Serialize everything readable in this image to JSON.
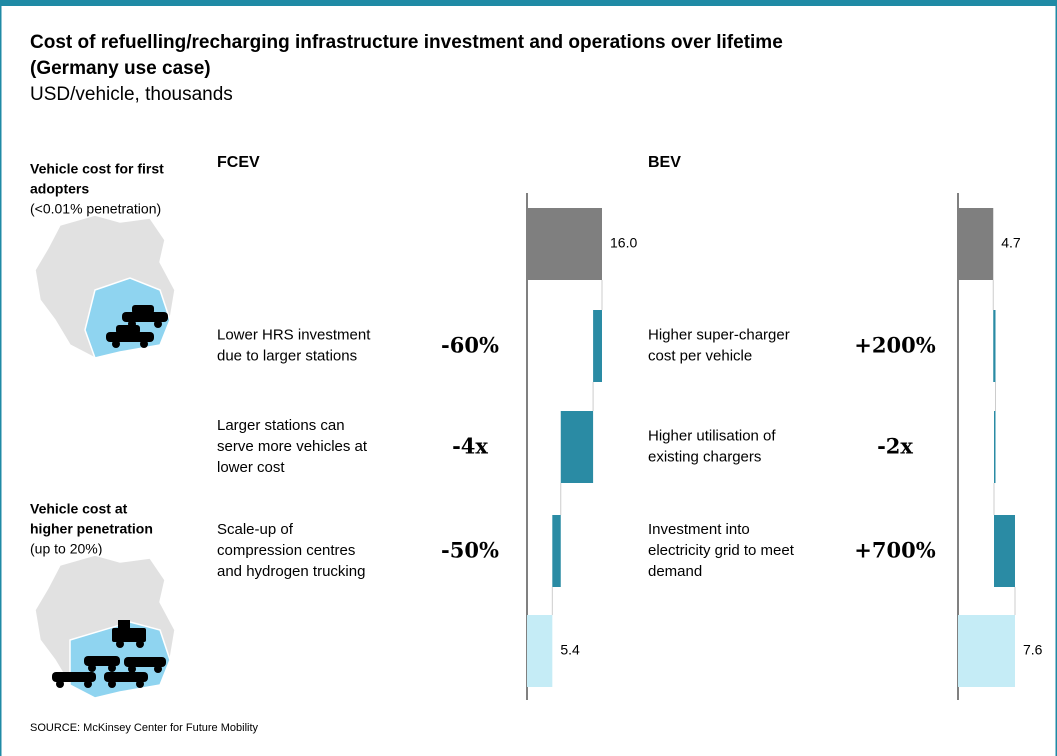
{
  "title": [
    "Cost of refuelling/recharging infrastructure investment and operations over lifetime",
    "(Germany use case)"
  ],
  "subtitle": "USD/vehicle, thousands",
  "side_panels": [
    {
      "heading": [
        "Vehicle cost for first",
        "adopters"
      ],
      "note": "(<0.01% penetration)"
    },
    {
      "heading": [
        "Vehicle cost at",
        "higher penetration"
      ],
      "note": "(up to 20%)"
    }
  ],
  "source": "SOURCE: McKinsey Center for Future Mobility",
  "chart_data": [
    {
      "type": "waterfall",
      "title": "FCEV",
      "categories": [
        null,
        [
          "Lower HRS investment",
          "due to larger stations"
        ],
        [
          "Larger stations can",
          "serve more vehicles at",
          "lower cost"
        ],
        [
          "Scale-up of",
          "compression centres",
          "and hydrogen trucking"
        ],
        null
      ],
      "measure": [
        "absolute",
        "relative",
        "relative",
        "relative",
        "total"
      ],
      "values": [
        16.0,
        -1.9,
        -6.9,
        -1.8,
        5.4
      ],
      "value_labels": [
        "16.0",
        null,
        null,
        null,
        "5.4"
      ],
      "annotations": [
        null,
        "-60%",
        "-4x",
        "-50%",
        null
      ],
      "colors": [
        "#7f7f7f",
        "#2a8ba4",
        "#2a8ba4",
        "#2a8ba4",
        "#c5ecf6"
      ],
      "xlim": [
        0,
        16
      ]
    },
    {
      "type": "waterfall",
      "title": "BEV",
      "categories": [
        null,
        [
          "Higher super-charger",
          "cost per vehicle"
        ],
        [
          "Higher utilisation of",
          "existing chargers"
        ],
        [
          "Investment into",
          "electricity grid to meet",
          "demand"
        ],
        null
      ],
      "measure": [
        "absolute",
        "relative",
        "relative",
        "relative",
        "total"
      ],
      "values": [
        4.7,
        0.3,
        -0.2,
        2.8,
        7.6
      ],
      "value_labels": [
        "4.7",
        null,
        null,
        null,
        "7.6"
      ],
      "annotations": [
        null,
        "+200%",
        "-2x",
        "+700%",
        null
      ],
      "colors": [
        "#7f7f7f",
        "#2a8ba4",
        "#2a8ba4",
        "#2a8ba4",
        "#c5ecf6"
      ],
      "xlim": [
        0,
        8
      ]
    }
  ]
}
